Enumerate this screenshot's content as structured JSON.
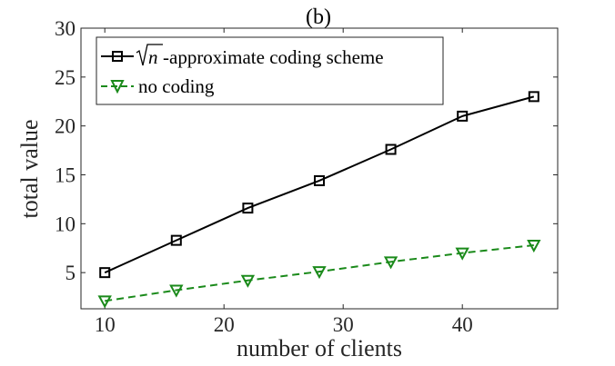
{
  "chart_data": {
    "type": "line",
    "title": "(b)",
    "xlabel": "number of clients",
    "ylabel": "total value",
    "xlim": [
      8,
      48
    ],
    "ylim": [
      1.3,
      30
    ],
    "xticks": [
      10,
      20,
      30,
      40
    ],
    "yticks": [
      5,
      10,
      15,
      20,
      25,
      30
    ],
    "grid": false,
    "legend_position": "top-left",
    "x": [
      10,
      16,
      22,
      28,
      34,
      40,
      46
    ],
    "series": [
      {
        "name_prefix": "√",
        "name_var": "n",
        "name_suffix": "-approximate coding scheme",
        "values": [
          5.0,
          8.3,
          11.6,
          14.4,
          17.6,
          21.0,
          23.0
        ],
        "color": "#000000",
        "line_style": "solid",
        "marker": "square"
      },
      {
        "name": "no coding",
        "values": [
          2.1,
          3.2,
          4.2,
          5.1,
          6.1,
          7.0,
          7.8
        ],
        "color": "#1a8a1a",
        "line_style": "dashed",
        "marker": "triangle-down"
      }
    ]
  }
}
